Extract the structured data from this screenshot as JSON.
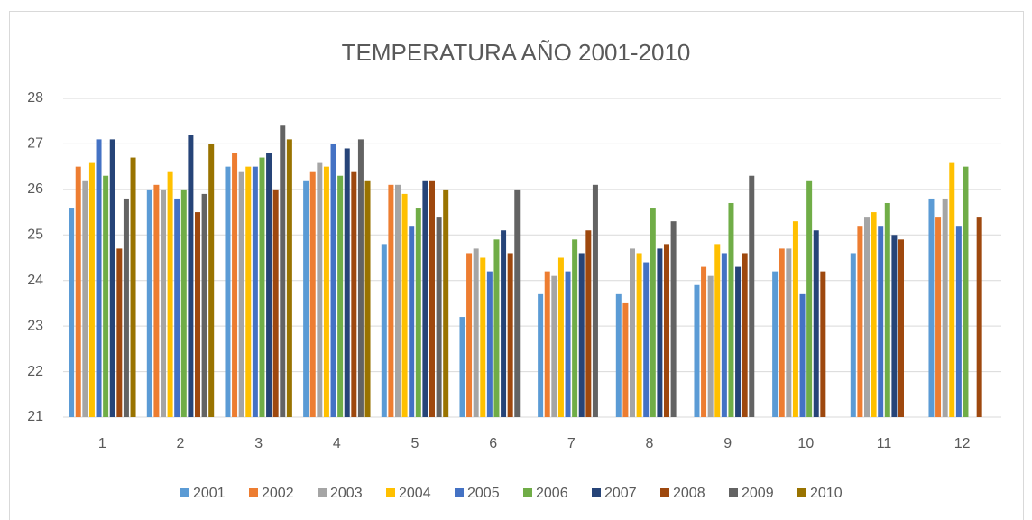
{
  "chart_data": {
    "type": "bar",
    "title": "TEMPERATURA AÑO 2001-2010",
    "categories": [
      "1",
      "2",
      "3",
      "4",
      "5",
      "6",
      "7",
      "8",
      "9",
      "10",
      "11",
      "12"
    ],
    "ylim": [
      21,
      28
    ],
    "yticks": [
      21,
      22,
      23,
      24,
      25,
      26,
      27,
      28
    ],
    "grid": true,
    "legend": "bottom",
    "series": [
      {
        "name": "2001",
        "color": "#5b9bd5",
        "values": [
          25.6,
          26.0,
          26.5,
          26.2,
          24.8,
          23.2,
          23.7,
          23.7,
          23.9,
          24.2,
          24.6,
          25.8
        ]
      },
      {
        "name": "2002",
        "color": "#ed7d31",
        "values": [
          26.5,
          26.1,
          26.8,
          26.4,
          26.1,
          24.6,
          24.2,
          23.5,
          24.3,
          24.7,
          25.2,
          25.4
        ]
      },
      {
        "name": "2003",
        "color": "#a5a5a5",
        "values": [
          26.2,
          26.0,
          26.4,
          26.6,
          26.1,
          24.7,
          24.1,
          24.7,
          24.1,
          24.7,
          25.4,
          25.8
        ]
      },
      {
        "name": "2004",
        "color": "#ffc000",
        "values": [
          26.6,
          26.4,
          26.5,
          26.5,
          25.9,
          24.5,
          24.5,
          24.6,
          24.8,
          25.3,
          25.5,
          26.6
        ]
      },
      {
        "name": "2005",
        "color": "#4472c4",
        "values": [
          27.1,
          25.8,
          26.5,
          27.0,
          25.2,
          24.2,
          24.2,
          24.4,
          24.6,
          23.7,
          25.2,
          25.2
        ]
      },
      {
        "name": "2006",
        "color": "#70ad47",
        "values": [
          26.3,
          26.0,
          26.7,
          26.3,
          25.6,
          24.9,
          24.9,
          25.6,
          25.7,
          26.2,
          25.7,
          26.5
        ]
      },
      {
        "name": "2007",
        "color": "#264478",
        "values": [
          27.1,
          27.2,
          26.8,
          26.9,
          26.2,
          25.1,
          24.6,
          24.7,
          24.3,
          25.1,
          25.0,
          null
        ]
      },
      {
        "name": "2008",
        "color": "#9e480e",
        "values": [
          24.7,
          25.5,
          26.0,
          26.4,
          26.2,
          24.6,
          25.1,
          24.8,
          24.6,
          24.2,
          24.9,
          25.4
        ]
      },
      {
        "name": "2009",
        "color": "#636363",
        "values": [
          25.8,
          25.9,
          27.4,
          27.1,
          25.4,
          26.0,
          26.1,
          25.3,
          26.3,
          null,
          null,
          null
        ]
      },
      {
        "name": "2010",
        "color": "#997300",
        "values": [
          26.7,
          27.0,
          27.1,
          26.2,
          26.0,
          null,
          null,
          null,
          null,
          null,
          null,
          null
        ]
      }
    ]
  }
}
